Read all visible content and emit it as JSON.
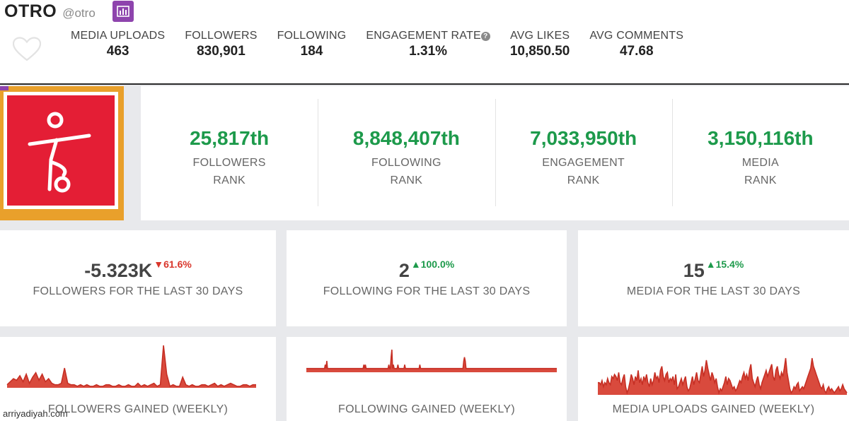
{
  "profile": {
    "name": "OTRO",
    "handle": "@otro",
    "chart_button_icon": "bar-chart-icon",
    "favorite_icon": "heart-outline-icon"
  },
  "stats": [
    {
      "label": "MEDIA UPLOADS",
      "value": "463"
    },
    {
      "label": "FOLLOWERS",
      "value": "830,901"
    },
    {
      "label": "FOLLOWING",
      "value": "184"
    },
    {
      "label": "ENGAGEMENT RATE",
      "value": "1.31%",
      "help_icon": "question-circle-icon",
      "help_glyph": "?"
    },
    {
      "label": "AVG LIKES",
      "value": "10,850.50"
    },
    {
      "label": "AVG COMMENTS",
      "value": "47.68"
    }
  ],
  "ranks": [
    {
      "value": "25,817th",
      "label_line1": "FOLLOWERS",
      "label_line2": "RANK"
    },
    {
      "value": "8,848,407th",
      "label_line1": "FOLLOWING",
      "label_line2": "RANK"
    },
    {
      "value": "7,033,950th",
      "label_line1": "ENGAGEMENT",
      "label_line2": "RANK"
    },
    {
      "value": "3,150,116th",
      "label_line1": "MEDIA",
      "label_line2": "RANK"
    }
  ],
  "last30": [
    {
      "value": "-5.323K",
      "change": "▼61.6%",
      "direction": "down",
      "label": "FOLLOWERS FOR THE LAST 30 DAYS"
    },
    {
      "value": "2",
      "change": "▲100.0%",
      "direction": "up",
      "label": "FOLLOWING FOR THE LAST 30 DAYS"
    },
    {
      "value": "15",
      "change": "▲15.4%",
      "direction": "up",
      "label": "MEDIA FOR THE LAST 30 DAYS"
    }
  ],
  "chart_data": [
    {
      "type": "area",
      "title": "FOLLOWERS GAINED (WEEKLY)",
      "values": [
        2,
        4,
        6,
        5,
        8,
        4,
        9,
        3,
        7,
        10,
        5,
        9,
        4,
        6,
        3,
        2,
        2,
        3,
        13,
        3,
        2,
        2,
        1,
        2,
        1,
        2,
        1,
        1,
        2,
        1,
        1,
        2,
        2,
        1,
        1,
        2,
        1,
        1,
        2,
        1,
        1,
        3,
        1,
        2,
        1,
        2,
        3,
        1,
        2,
        28,
        9,
        1,
        2,
        1,
        1,
        7,
        2,
        1,
        2,
        1,
        1,
        2,
        2,
        1,
        2,
        3,
        1,
        2,
        1,
        2,
        3,
        2,
        1,
        1,
        2,
        2,
        1,
        2,
        2
      ]
    },
    {
      "type": "area",
      "title": "FOLLOWING GAINED (WEEKLY)",
      "values": [
        1,
        1,
        1,
        1,
        1,
        1,
        1,
        1,
        1,
        1,
        1,
        1,
        1,
        1,
        1,
        1,
        1,
        1,
        1,
        1,
        1,
        1,
        1,
        1,
        1,
        2,
        1,
        3,
        1,
        1,
        1,
        1,
        1,
        1,
        1,
        1,
        1,
        1,
        1,
        1,
        1,
        1,
        1,
        1,
        1,
        1,
        1,
        1,
        1,
        1,
        1,
        1,
        1,
        1,
        1,
        1,
        1,
        1,
        1,
        1,
        1,
        1,
        1,
        1,
        1,
        1,
        1,
        1,
        1,
        1,
        1,
        1,
        1,
        1,
        1,
        1,
        2,
        1,
        2,
        1,
        1,
        1,
        1,
        1,
        1,
        1,
        1,
        1,
        1,
        1,
        1,
        1,
        1,
        1,
        1,
        1,
        1,
        1,
        1,
        1,
        1,
        1,
        1,
        1,
        1,
        1,
        1,
        1,
        1,
        2,
        1,
        1,
        4,
        6,
        1,
        2,
        1,
        1,
        1,
        1,
        1,
        2,
        1,
        1,
        1,
        1,
        1,
        1,
        1,
        1,
        2,
        1,
        1,
        1,
        1,
        1,
        1,
        1,
        1,
        1,
        1,
        1,
        1,
        1,
        1,
        1,
        1,
        1,
        1,
        1,
        2,
        1,
        1,
        1,
        1,
        1,
        1,
        1,
        1,
        1,
        1,
        1,
        1,
        1,
        1,
        1,
        1,
        1,
        1,
        1,
        1,
        1,
        1,
        1,
        1,
        1,
        1,
        1,
        1,
        1,
        1,
        1,
        1,
        1,
        1,
        1,
        1,
        1,
        1,
        1,
        1,
        1,
        1,
        1,
        1,
        1,
        1,
        1,
        1,
        1,
        1,
        1,
        1,
        1,
        1,
        1,
        1,
        1,
        3,
        4,
        3,
        1,
        1,
        1,
        1,
        1,
        1,
        1,
        1,
        1,
        1,
        1,
        1,
        1,
        1,
        1,
        1,
        1,
        1,
        1,
        1,
        1,
        1,
        1,
        1,
        1,
        1,
        1,
        1,
        1,
        1,
        1,
        1,
        1,
        1,
        1,
        1,
        1,
        1,
        1,
        1,
        1,
        1,
        1,
        1,
        1,
        1,
        1,
        1,
        1,
        1,
        1,
        1,
        1,
        1,
        1,
        1,
        1,
        1,
        1,
        1,
        1,
        1,
        1,
        1,
        1,
        1,
        1,
        1,
        1,
        1,
        1,
        1,
        1,
        1,
        1,
        1,
        1,
        1,
        1,
        1,
        1,
        1,
        1,
        1,
        1,
        1,
        1,
        1,
        1,
        1,
        1,
        1,
        1,
        1,
        1,
        1,
        1,
        1,
        1,
        1,
        1,
        1,
        1,
        1,
        1,
        1,
        1,
        1,
        1,
        1,
        1,
        1,
        1,
        1,
        1,
        1,
        1,
        1,
        1,
        1,
        1
      ]
    },
    {
      "type": "area",
      "title": "MEDIA UPLOADS GAINED (WEEKLY)",
      "values": [
        6,
        6,
        5,
        7,
        4,
        6,
        5,
        8,
        6,
        5,
        9,
        8,
        10,
        9,
        7,
        11,
        6,
        5,
        8,
        10,
        4,
        1,
        3,
        6,
        10,
        8,
        5,
        9,
        7,
        12,
        6,
        8,
        5,
        9,
        7,
        10,
        6,
        4,
        8,
        5,
        7,
        11,
        8,
        9,
        6,
        12,
        14,
        9,
        7,
        10,
        11,
        6,
        8,
        7,
        9,
        5,
        10,
        3,
        4,
        6,
        8,
        5,
        7,
        9,
        4,
        2,
        3,
        6,
        9,
        5,
        8,
        11,
        7,
        6,
        10,
        14,
        9,
        12,
        17,
        13,
        10,
        7,
        11,
        9,
        6,
        8,
        4,
        1,
        3,
        2,
        4,
        6,
        9,
        5,
        8,
        7,
        5,
        3,
        4,
        2,
        3,
        5,
        7,
        6,
        9,
        11,
        8,
        10,
        7,
        12,
        15,
        8,
        6,
        4,
        7,
        9,
        5,
        3,
        6,
        8,
        10,
        12,
        9,
        11,
        13,
        15,
        9,
        7,
        12,
        14,
        10,
        8,
        11,
        9,
        13,
        18,
        11,
        7,
        3,
        1,
        2,
        4,
        3,
        5,
        6,
        2,
        3,
        4,
        3,
        5,
        7,
        9,
        11,
        13,
        18,
        14,
        12,
        10,
        8,
        6,
        4,
        3,
        5,
        2,
        1,
        3,
        4,
        2,
        3,
        2,
        1,
        2,
        3,
        4,
        2,
        3,
        5,
        3,
        2,
        1
      ]
    }
  ],
  "watermark": "arriyadiyah.com"
}
